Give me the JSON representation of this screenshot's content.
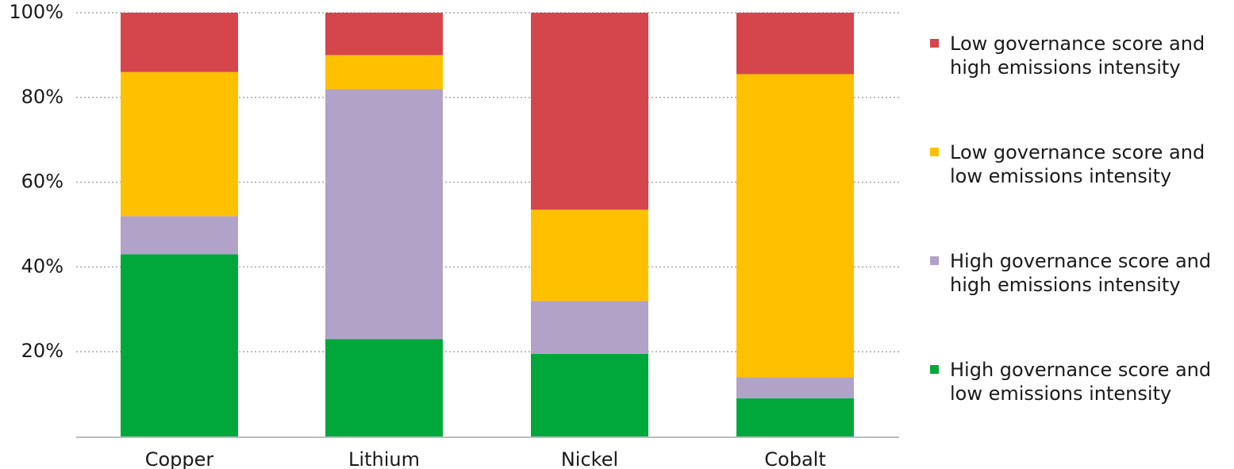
{
  "chart_data": {
    "type": "bar",
    "stacked": true,
    "categories": [
      "Copper",
      "Lithium",
      "Nickel",
      "Cobalt"
    ],
    "series": [
      {
        "name": "High governance score and low emissions intensity",
        "color": "#00a83c",
        "values": [
          43,
          23,
          19.5,
          9
        ]
      },
      {
        "name": "High governance score and high emissions intensity",
        "color": "#b1a2c8",
        "values": [
          9,
          59,
          12.5,
          5
        ]
      },
      {
        "name": "Low governance score and low emissions intensity",
        "color": "#ffc000",
        "values": [
          34,
          8,
          21.5,
          71.5
        ]
      },
      {
        "name": "Low governance score and high emissions intensity",
        "color": "#d4464b",
        "values": [
          14,
          10,
          46.5,
          14.5
        ]
      }
    ],
    "y_ticks": [
      "20%",
      "40%",
      "60%",
      "80%",
      "100%"
    ],
    "ylim": [
      0,
      100
    ],
    "title": "",
    "xlabel": "",
    "ylabel": "",
    "grid": true,
    "grid_style": "dotted",
    "legend_position": "right",
    "legend_order": [
      "Low governance score and high emissions intensity",
      "Low governance score and low emissions intensity",
      "High governance score and high emissions intensity",
      "High governance score and low emissions intensity"
    ]
  }
}
